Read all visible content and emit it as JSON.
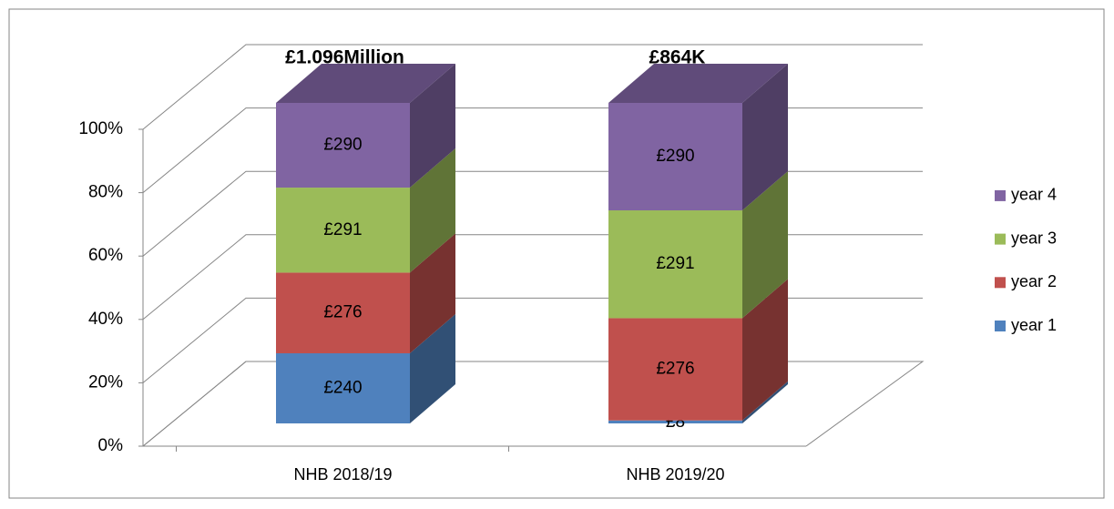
{
  "chart_data": {
    "type": "bar",
    "stacking": "percent",
    "categories": [
      "NHB 2018/19",
      "NHB 2019/20"
    ],
    "series": [
      {
        "name": "year 1",
        "color": "#4f81bd",
        "values": [
          240,
          8
        ],
        "value_labels": [
          "£240",
          "£8"
        ]
      },
      {
        "name": "year 2",
        "color": "#c0504d",
        "values": [
          276,
          276
        ],
        "value_labels": [
          "£276",
          "£276"
        ]
      },
      {
        "name": "year 3",
        "color": "#9bbb59",
        "values": [
          291,
          291
        ],
        "value_labels": [
          "£291",
          "£291"
        ]
      },
      {
        "name": "year 4",
        "color": "#8064a2",
        "values": [
          290,
          290
        ],
        "value_labels": [
          "£290",
          "£290"
        ]
      }
    ],
    "annotations": [
      "£1.096Million",
      "£864K"
    ],
    "ylim": [
      0,
      100
    ],
    "yticks": [
      {
        "value": 0,
        "label": "0%"
      },
      {
        "value": 20,
        "label": "20%"
      },
      {
        "value": 40,
        "label": "40%"
      },
      {
        "value": 60,
        "label": "60%"
      },
      {
        "value": 80,
        "label": "80%"
      },
      {
        "value": 100,
        "label": "100%"
      }
    ],
    "grid": true,
    "legend": "right"
  }
}
